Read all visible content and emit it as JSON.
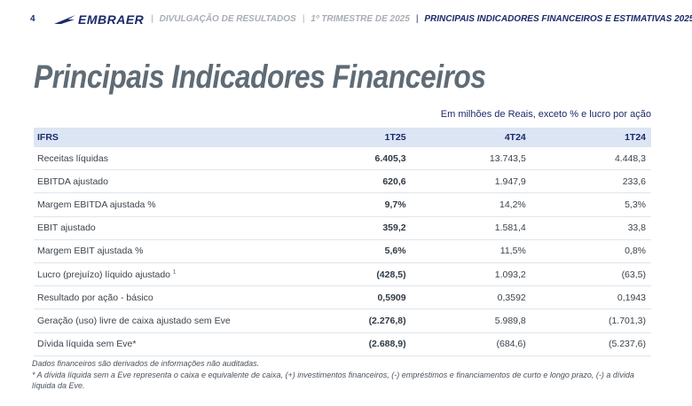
{
  "header": {
    "page_number": "4",
    "logo_text": "EMBRAER",
    "crumbs": [
      "DIVULGAÇÃO DE RESULTADOS",
      "1º TRIMESTRE DE 2025",
      "PRINCIPAIS INDICADORES FINANCEIROS E ESTIMATIVAS 2025"
    ],
    "separator": "|",
    "brand_color": "#1b2a6b"
  },
  "title": "Principais Indicadores Financeiros",
  "subtitle": "Em milhões de Reais, exceto % e lucro por ação",
  "table": {
    "headers": [
      "IFRS",
      "1T25",
      "4T24",
      "1T24"
    ],
    "rows": [
      {
        "label": "Receitas líquidas",
        "sup": "",
        "v1": "6.405,3",
        "v2": "13.743,5",
        "v3": "4.448,3"
      },
      {
        "label": "EBITDA ajustado",
        "sup": "",
        "v1": "620,6",
        "v2": "1.947,9",
        "v3": "233,6"
      },
      {
        "label": "Margem EBITDA ajustada %",
        "sup": "",
        "v1": "9,7%",
        "v2": "14,2%",
        "v3": "5,3%"
      },
      {
        "label": "EBIT ajustado",
        "sup": "",
        "v1": "359,2",
        "v2": "1.581,4",
        "v3": "33,8"
      },
      {
        "label": "Margem EBIT ajustada %",
        "sup": "",
        "v1": "5,6%",
        "v2": "11,5%",
        "v3": "0,8%"
      },
      {
        "label": "Lucro (prejuízo) líquido ajustado",
        "sup": "1",
        "v1": "(428,5)",
        "v2": "1.093,2",
        "v3": "(63,5)"
      },
      {
        "label": "Resultado por ação - básico",
        "sup": "",
        "v1": "0,5909",
        "v2": "0,3592",
        "v3": "0,1943"
      },
      {
        "label": "Geração (uso) livre de caixa ajustado sem Eve",
        "sup": "",
        "v1": "(2.276,8)",
        "v2": "5.989,8",
        "v3": "(1.701,3)"
      },
      {
        "label": "Dívida líquida sem Eve*",
        "sup": "",
        "v1": "(2.688,9)",
        "v2": "(684,6)",
        "v3": "(5.237,6)"
      }
    ]
  },
  "footnotes": {
    "line1": "Dados financeiros são derivados de informações não auditadas.",
    "line2": "* A dívida líquida sem a Eve representa o caixa e equivalente de caixa, (+) investimentos financeiros, (-) empréstimos e financiamentos de curto e longo prazo, (-) a dívida líquida da Eve."
  }
}
